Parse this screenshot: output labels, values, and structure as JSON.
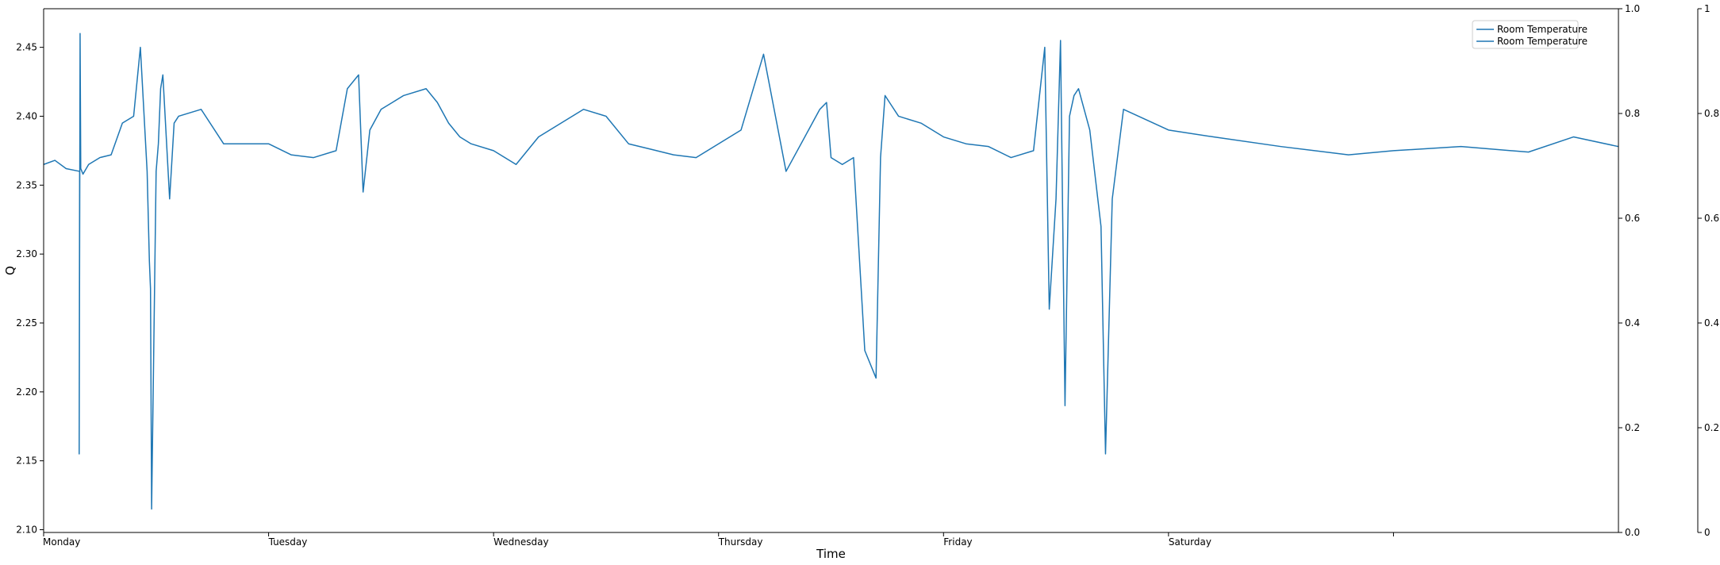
{
  "chart_data": {
    "type": "line",
    "title": "",
    "xlabel": "Time",
    "ylabel": "Q",
    "ylim": [
      2.098,
      2.478
    ],
    "y_ticks": [
      "2.10",
      "2.15",
      "2.20",
      "2.25",
      "2.30",
      "2.35",
      "2.40",
      "2.45"
    ],
    "x_ticks": [
      "Monday",
      "Tuesday",
      "Wednesday",
      "Thursday",
      "Friday",
      "Saturday",
      ""
    ],
    "right_axis_1_ticks": [
      "0.0",
      "0.2",
      "0.4",
      "0.6",
      "0.8",
      "1.0"
    ],
    "right_axis_2_ticks": [
      "0",
      "0.2",
      "0.4",
      "0.6",
      "0.8",
      "1"
    ],
    "right_axis_ylim": [
      0,
      1
    ],
    "xlim_days": [
      0,
      7
    ],
    "grid": false,
    "legend_position": "top-right",
    "legend": [
      "Room Temperature",
      "Room Temperature"
    ],
    "series": [
      {
        "name": "Room Temperature",
        "color": "#1f77b4",
        "x_days": [
          0,
          0.05,
          0.1,
          0.16,
          0.158,
          0.162,
          0.165,
          0.175,
          0.2,
          0.25,
          0.3,
          0.35,
          0.4,
          0.43,
          0.46,
          0.47,
          0.475,
          0.48,
          0.5,
          0.51,
          0.52,
          0.53,
          0.56,
          0.58,
          0.6,
          0.7,
          0.8,
          0.9,
          1.0,
          1.1,
          1.2,
          1.3,
          1.35,
          1.4,
          1.42,
          1.45,
          1.5,
          1.55,
          1.6,
          1.7,
          1.75,
          1.8,
          1.85,
          1.9,
          2.0,
          2.1,
          2.2,
          2.3,
          2.4,
          2.5,
          2.6,
          2.7,
          2.8,
          2.9,
          3.0,
          3.1,
          3.2,
          3.3,
          3.4,
          3.45,
          3.48,
          3.5,
          3.55,
          3.6,
          3.65,
          3.7,
          3.72,
          3.74,
          3.76,
          3.8,
          3.9,
          4.0,
          4.1,
          4.2,
          4.3,
          4.4,
          4.45,
          4.47,
          4.5,
          4.52,
          4.54,
          4.56,
          4.58,
          4.6,
          4.65,
          4.7,
          4.72,
          4.75,
          4.8,
          5.0,
          5.2,
          5.5,
          5.8,
          6.0,
          6.3,
          6.6,
          6.8,
          7.0
        ],
        "y": [
          2.365,
          2.368,
          2.362,
          2.36,
          2.155,
          2.46,
          2.362,
          2.358,
          2.365,
          2.37,
          2.372,
          2.395,
          2.4,
          2.45,
          2.36,
          2.295,
          2.275,
          2.115,
          2.36,
          2.38,
          2.42,
          2.43,
          2.34,
          2.395,
          2.4,
          2.405,
          2.38,
          2.38,
          2.38,
          2.372,
          2.37,
          2.375,
          2.42,
          2.43,
          2.345,
          2.39,
          2.405,
          2.41,
          2.415,
          2.42,
          2.41,
          2.395,
          2.385,
          2.38,
          2.375,
          2.365,
          2.385,
          2.395,
          2.405,
          2.4,
          2.38,
          2.376,
          2.372,
          2.37,
          2.38,
          2.39,
          2.445,
          2.36,
          2.39,
          2.405,
          2.41,
          2.37,
          2.365,
          2.37,
          2.23,
          2.21,
          2.37,
          2.415,
          2.41,
          2.4,
          2.395,
          2.385,
          2.38,
          2.378,
          2.37,
          2.375,
          2.45,
          2.26,
          2.34,
          2.455,
          2.19,
          2.4,
          2.415,
          2.42,
          2.39,
          2.32,
          2.155,
          2.34,
          2.405,
          2.39,
          2.385,
          2.378,
          2.372,
          2.375,
          2.378,
          2.374,
          2.385,
          2.378
        ]
      }
    ]
  }
}
